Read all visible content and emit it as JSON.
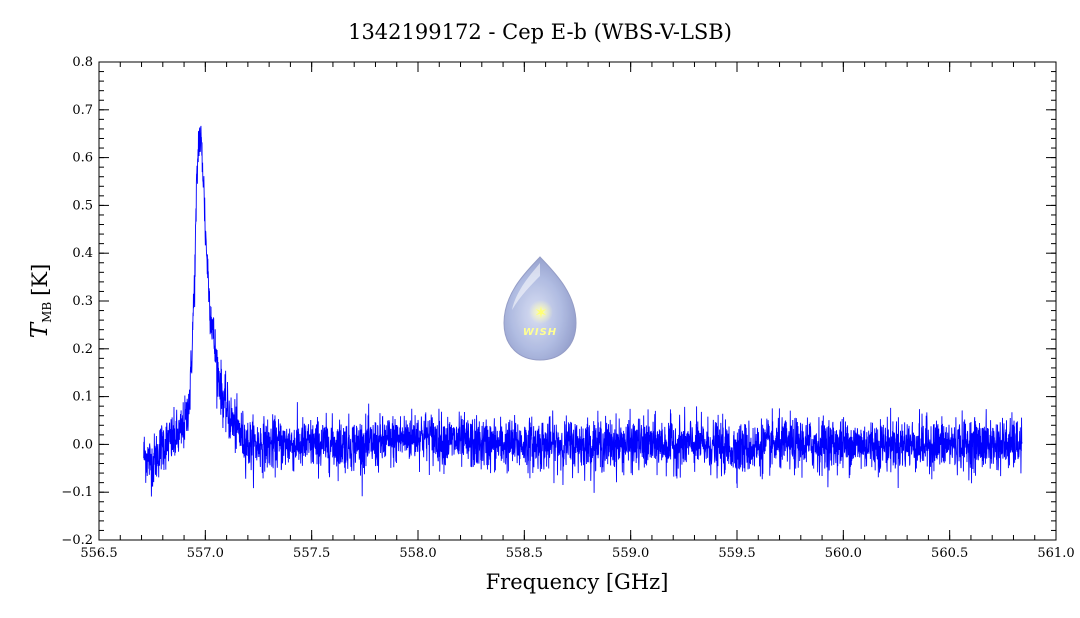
{
  "chart_data": {
    "type": "line",
    "title": "1342199172 - Cep E-b (WBS-V-LSB)",
    "xlabel": "Frequency [GHz]",
    "ylabel_main": "T",
    "ylabel_sub": "MB",
    "ylabel_unit": "[K]",
    "xlim": [
      556.5,
      561.0
    ],
    "ylim": [
      -0.2,
      0.8
    ],
    "x_ticks": [
      "556.5",
      "557.0",
      "557.5",
      "558.0",
      "558.5",
      "559.0",
      "559.5",
      "560.0",
      "560.5",
      "561.0"
    ],
    "y_ticks": [
      "−0.2",
      "−0.1",
      "0.0",
      "0.1",
      "0.2",
      "0.3",
      "0.4",
      "0.5",
      "0.6",
      "0.7",
      "0.8"
    ],
    "grid": false,
    "line_color": "#0000ff",
    "x_range": [
      556.71,
      560.84
    ],
    "series": [
      {
        "x": [
          556.71,
          556.75,
          556.8,
          556.85,
          556.88,
          556.91,
          556.93,
          556.95,
          556.96,
          556.97,
          556.98,
          556.99,
          557.0,
          557.02,
          557.05,
          557.08,
          557.12,
          557.2,
          557.4,
          557.6,
          557.8,
          558.0,
          558.1,
          558.3,
          558.5,
          558.7,
          558.9,
          559.1,
          559.3,
          559.5,
          559.7,
          559.9,
          560.1,
          560.3,
          560.5,
          560.7,
          560.84
        ],
        "values": [
          -0.02,
          -0.04,
          0.0,
          0.01,
          0.02,
          0.05,
          0.12,
          0.35,
          0.55,
          0.65,
          0.63,
          0.57,
          0.45,
          0.3,
          0.18,
          0.1,
          0.05,
          0.0,
          0.0,
          0.0,
          0.0,
          0.02,
          0.01,
          0.0,
          0.0,
          0.0,
          0.0,
          0.0,
          0.0,
          -0.01,
          0.0,
          0.0,
          0.0,
          0.0,
          0.0,
          0.0,
          0.0
        ],
        "noise_rms": 0.027
      }
    ],
    "logo_text": "WISH"
  }
}
